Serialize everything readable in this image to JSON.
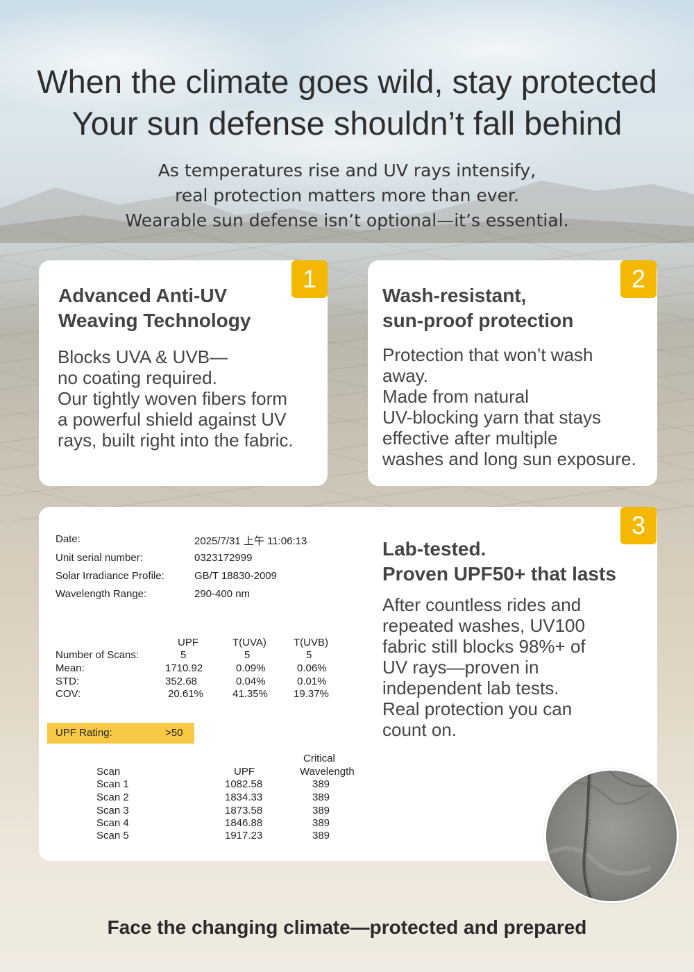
{
  "headline": {
    "line1": "When the climate goes wild, stay protected",
    "line2": "Your sun defense shouldn’t fall behind"
  },
  "subheadline": {
    "line1": "As temperatures rise and UV rays intensify,",
    "line2": "real protection matters more than ever.",
    "line3": "Wearable sun defense isn’t optional—it’s essential."
  },
  "cards": [
    {
      "number": "1",
      "title_lines": [
        "Advanced Anti-UV",
        "Weaving Technology"
      ],
      "body_lines": [
        "Blocks UVA & UVB—",
        "no coating required.",
        "Our tightly woven fibers form",
        "a powerful shield against UV",
        "rays, built right into the fabric."
      ]
    },
    {
      "number": "2",
      "title_lines": [
        "Wash-resistant,",
        "sun-proof protection"
      ],
      "body_lines": [
        "Protection that won’t wash",
        "away.",
        "Made from natural",
        "UV-blocking yarn that stays",
        "effective after multiple",
        "washes and long sun exposure."
      ]
    },
    {
      "number": "3",
      "title_lines": [
        "Lab-tested.",
        "Proven UPF50+ that lasts"
      ],
      "body_lines": [
        "After countless rides and",
        "repeated washes, UV100",
        "fabric still blocks 98%+ of",
        "UV rays—proven in",
        "independent lab tests.",
        "Real protection you can",
        "count on."
      ]
    }
  ],
  "report": {
    "info": [
      {
        "label": "Date:",
        "value": "2025/7/31 上午 11:06:13"
      },
      {
        "label": "Unit serial number:",
        "value": "0323172999"
      },
      {
        "label": "Solar Irradiance Profile:",
        "value": "GB/T 18830-2009"
      },
      {
        "label": "Wavelength Range:",
        "value": "290-400 nm"
      }
    ],
    "stats_headers": [
      "UPF",
      "T(UVA)",
      "T(UVB)"
    ],
    "stats_rows": [
      {
        "label": "Number of Scans:",
        "values": [
          "5",
          "5",
          "5"
        ]
      },
      {
        "label": "Mean:",
        "values": [
          "1710.92",
          "0.09%",
          "0.06%"
        ]
      },
      {
        "label": "STD:",
        "values": [
          "352.68",
          "0.04%",
          "0.01%"
        ]
      },
      {
        "label": "COV:",
        "values": [
          "20.61%",
          "41.35%",
          "19.37%"
        ]
      }
    ],
    "upf_rating": {
      "label": "UPF Rating:",
      "value": ">50"
    },
    "scan_headers": {
      "scan": "Scan",
      "upf": "UPF",
      "cw_line1": "Critical",
      "cw_line2": "Wavelength"
    },
    "scans": [
      {
        "scan": "Scan 1",
        "upf": "1082.58",
        "cw": "389"
      },
      {
        "scan": "Scan 2",
        "upf": "1834.33",
        "cw": "389"
      },
      {
        "scan": "Scan 3",
        "upf": "1873.58",
        "cw": "389"
      },
      {
        "scan": "Scan 4",
        "upf": "1846.88",
        "cw": "389"
      },
      {
        "scan": "Scan 5",
        "upf": "1917.23",
        "cw": "389"
      }
    ]
  },
  "footer": "Face the changing climate—protected and prepared",
  "colors": {
    "badge": "#f5b800",
    "upf_highlight": "#f9c946",
    "card": "#ffffff",
    "text": "#444444"
  }
}
